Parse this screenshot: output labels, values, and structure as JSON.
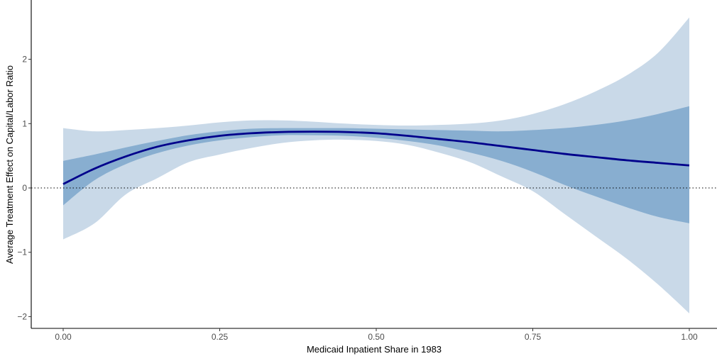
{
  "chart_data": {
    "type": "area",
    "title": "",
    "xlabel": "Medicaid Inpatient Share in 1983",
    "ylabel": "Average Treatment Effect on Capital/Labor Ratio",
    "xlim": [
      -0.05,
      1.03
    ],
    "ylim": [
      -2.2,
      2.9
    ],
    "x_ticks": [
      0.0,
      0.25,
      0.5,
      0.75,
      1.0
    ],
    "x_tick_labels": [
      "0.00",
      "0.25",
      "0.50",
      "0.75",
      "1.00"
    ],
    "y_ticks": [
      -2,
      -1,
      0,
      1,
      2
    ],
    "y_tick_labels": [
      "−2",
      "−1",
      "0",
      "1",
      "2"
    ],
    "reference_line": {
      "y": 0,
      "style": "dotted"
    },
    "grid": false,
    "x": [
      0.0,
      0.05,
      0.1,
      0.15,
      0.2,
      0.25,
      0.3,
      0.35,
      0.4,
      0.45,
      0.5,
      0.55,
      0.6,
      0.65,
      0.7,
      0.75,
      0.8,
      0.85,
      0.9,
      0.95,
      1.0
    ],
    "series": [
      {
        "role": "outer_band",
        "color": "#c9d9e8",
        "lower": [
          -0.8,
          -0.55,
          -0.1,
          0.15,
          0.4,
          0.52,
          0.62,
          0.7,
          0.74,
          0.75,
          0.73,
          0.67,
          0.55,
          0.4,
          0.18,
          -0.05,
          -0.4,
          -0.75,
          -1.1,
          -1.5,
          -1.95
        ],
        "upper": [
          0.93,
          0.88,
          0.9,
          0.93,
          0.97,
          1.02,
          1.05,
          1.05,
          1.03,
          1.0,
          0.98,
          0.97,
          0.98,
          1.0,
          1.05,
          1.15,
          1.3,
          1.5,
          1.75,
          2.1,
          2.65
        ]
      },
      {
        "role": "inner_band",
        "color": "#88aed0",
        "lower": [
          -0.27,
          0.12,
          0.37,
          0.54,
          0.66,
          0.74,
          0.79,
          0.82,
          0.82,
          0.81,
          0.78,
          0.73,
          0.66,
          0.55,
          0.42,
          0.25,
          0.05,
          -0.13,
          -0.3,
          -0.45,
          -0.55
        ],
        "upper": [
          0.42,
          0.52,
          0.63,
          0.73,
          0.82,
          0.88,
          0.92,
          0.93,
          0.93,
          0.93,
          0.92,
          0.91,
          0.9,
          0.89,
          0.88,
          0.9,
          0.93,
          0.98,
          1.05,
          1.15,
          1.27
        ]
      },
      {
        "role": "estimate",
        "color": "#00008b",
        "values": [
          0.06,
          0.3,
          0.49,
          0.64,
          0.74,
          0.81,
          0.85,
          0.87,
          0.875,
          0.87,
          0.85,
          0.81,
          0.76,
          0.71,
          0.65,
          0.59,
          0.53,
          0.48,
          0.43,
          0.39,
          0.35
        ]
      }
    ]
  }
}
